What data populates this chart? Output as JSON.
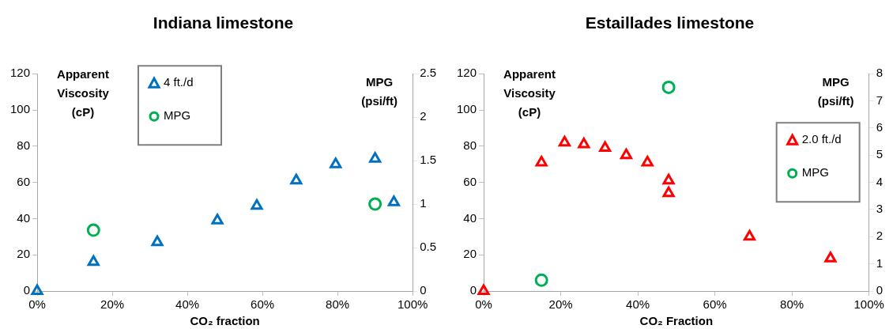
{
  "chart_data": [
    {
      "type": "scatter",
      "title": "Indiana limestone",
      "xlabel": "CO₂ fraction",
      "ylabel": "Apparent Viscosity (cP)",
      "y2label": "MPG (psi/ft)",
      "xlim": [
        0,
        100
      ],
      "xticks": [
        {
          "value": 0,
          "label": "0%"
        },
        {
          "value": 20,
          "label": "20%"
        },
        {
          "value": 40,
          "label": "40%"
        },
        {
          "value": 60,
          "label": "60%"
        },
        {
          "value": 80,
          "label": "80%"
        },
        {
          "value": 100,
          "label": "100%"
        }
      ],
      "ylim": [
        0,
        120
      ],
      "yticks": [
        0,
        20,
        40,
        60,
        80,
        100,
        120
      ],
      "y2lim": [
        0,
        2.5
      ],
      "y2ticks": [
        0,
        0.5,
        1,
        1.5,
        2,
        2.5
      ],
      "grid": false,
      "legend": "top left",
      "series": [
        {
          "name": "4 ft./d",
          "color": "#0070c0",
          "marker": "triangle",
          "x": [
            0,
            15,
            32,
            48,
            58.5,
            69,
            79.5,
            90,
            95
          ],
          "values": [
            0,
            16,
            27,
            39,
            47,
            61,
            70,
            73,
            49
          ]
        },
        {
          "name": "MPG",
          "color": "#00b050",
          "marker": "circle",
          "axis": "y2",
          "x": [
            15,
            90
          ],
          "values": [
            0.7,
            1.0
          ]
        }
      ]
    },
    {
      "type": "scatter",
      "title": "Estaillades limestone",
      "xlabel": "CO₂ Fraction",
      "ylabel": "Apparent Viscosity (cP)",
      "y2label": "MPG (psi/ft)",
      "xlim": [
        0,
        100
      ],
      "xticks": [
        {
          "value": 0,
          "label": "0%"
        },
        {
          "value": 20,
          "label": "20%"
        },
        {
          "value": 40,
          "label": "40%"
        },
        {
          "value": 60,
          "label": "60%"
        },
        {
          "value": 80,
          "label": "80%"
        },
        {
          "value": 100,
          "label": "100%"
        }
      ],
      "ylim": [
        0,
        120
      ],
      "yticks": [
        0,
        20,
        40,
        60,
        80,
        100,
        120
      ],
      "y2lim": [
        0,
        8
      ],
      "y2ticks": [
        0,
        1,
        2,
        3,
        4,
        5,
        6,
        7,
        8
      ],
      "grid": false,
      "legend": "right",
      "series": [
        {
          "name": "2.0 ft./d",
          "color": "#ff0000",
          "marker": "triangle",
          "x": [
            0,
            15,
            21,
            26,
            31.5,
            37,
            42.5,
            48,
            48,
            69,
            90
          ],
          "values": [
            0,
            71,
            82,
            81,
            79,
            75,
            71,
            61,
            54,
            30,
            18
          ]
        },
        {
          "name": "MPG",
          "color": "#00b050",
          "marker": "circle",
          "axis": "y2",
          "x": [
            15,
            48
          ],
          "values": [
            0.4,
            7.5
          ]
        }
      ]
    }
  ]
}
